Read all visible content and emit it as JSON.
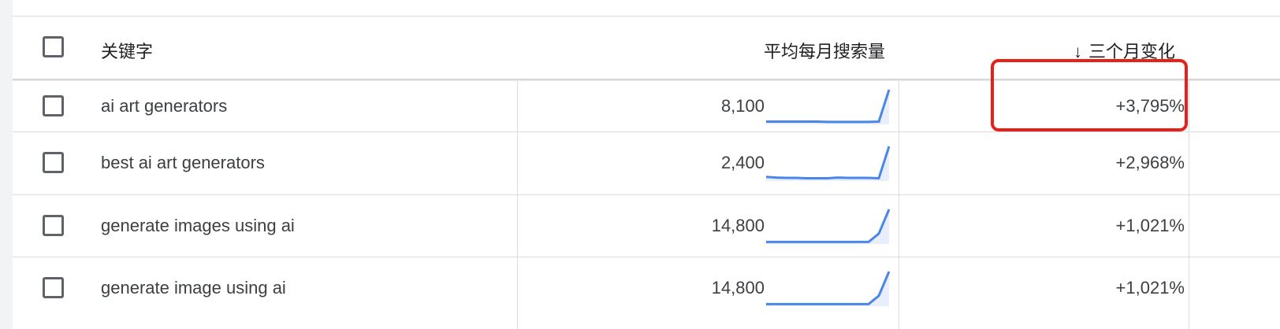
{
  "table": {
    "header": {
      "keyword_label": "关键字",
      "volume_label": "平均每月搜索量",
      "change_arrow": "↓",
      "change_label": "三个月变化"
    },
    "rows": [
      {
        "keyword": "ai art generators",
        "volume": "8,100",
        "change": "+3,795%",
        "trend": [
          0.08,
          0.08,
          0.08,
          0.08,
          0.08,
          0.08,
          0.07,
          0.07,
          0.07,
          0.07,
          0.07,
          0.08,
          1.0
        ]
      },
      {
        "keyword": "best ai art generators",
        "volume": "2,400",
        "change": "+2,968%",
        "trend": [
          0.12,
          0.1,
          0.09,
          0.09,
          0.08,
          0.08,
          0.08,
          0.1,
          0.09,
          0.09,
          0.09,
          0.08,
          1.0
        ]
      },
      {
        "keyword": "generate images using ai",
        "volume": "14,800",
        "change": "+1,021%",
        "trend": [
          0.06,
          0.06,
          0.06,
          0.06,
          0.06,
          0.06,
          0.06,
          0.06,
          0.06,
          0.06,
          0.06,
          0.3,
          1.0
        ]
      },
      {
        "keyword": "generate image using ai",
        "volume": "14,800",
        "change": "+1,021%",
        "trend": [
          0.06,
          0.06,
          0.06,
          0.06,
          0.06,
          0.06,
          0.06,
          0.06,
          0.06,
          0.06,
          0.06,
          0.3,
          1.0
        ]
      }
    ]
  },
  "colors": {
    "trend_line": "#4a86e8",
    "trend_fill": "#e8eefc",
    "highlight": "#e8201a"
  }
}
